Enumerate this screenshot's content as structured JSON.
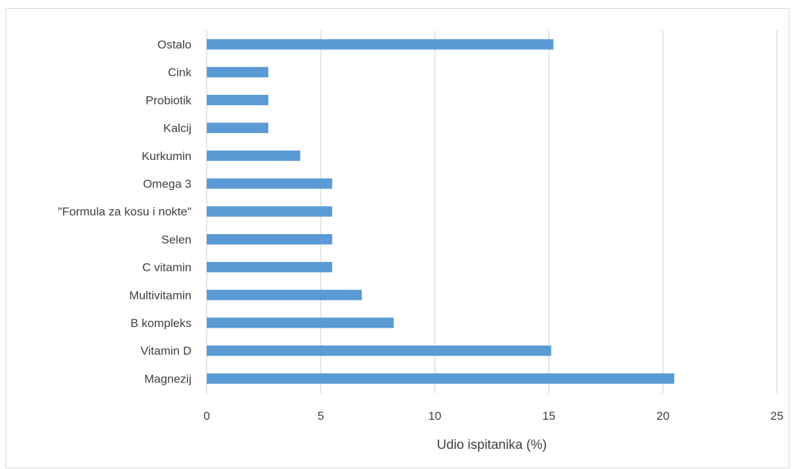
{
  "chart_data": {
    "type": "bar",
    "orientation": "horizontal",
    "categories": [
      "Ostalo",
      "Cink",
      "Probiotik",
      "Kalcij",
      "Kurkumin",
      "Omega 3",
      "\"Formula za kosu i nokte\"",
      "Selen",
      "C vitamin",
      "Multivitamin",
      "B kompleks",
      "Vitamin D",
      "Magnezij"
    ],
    "values": [
      15.2,
      2.7,
      2.7,
      2.7,
      4.1,
      5.5,
      5.5,
      5.5,
      5.5,
      6.8,
      8.2,
      15.1,
      20.5
    ],
    "xlabel": "Udio ispitanika (%)",
    "ylabel": "",
    "xlim": [
      0,
      25
    ],
    "xticks": [
      "0",
      "5",
      "10",
      "15",
      "20",
      "25"
    ],
    "grid": "vertical",
    "legend": "none",
    "bar_color": "#5b9bd5",
    "grid_color": "#d9d9d9",
    "text_color": "#404040"
  }
}
